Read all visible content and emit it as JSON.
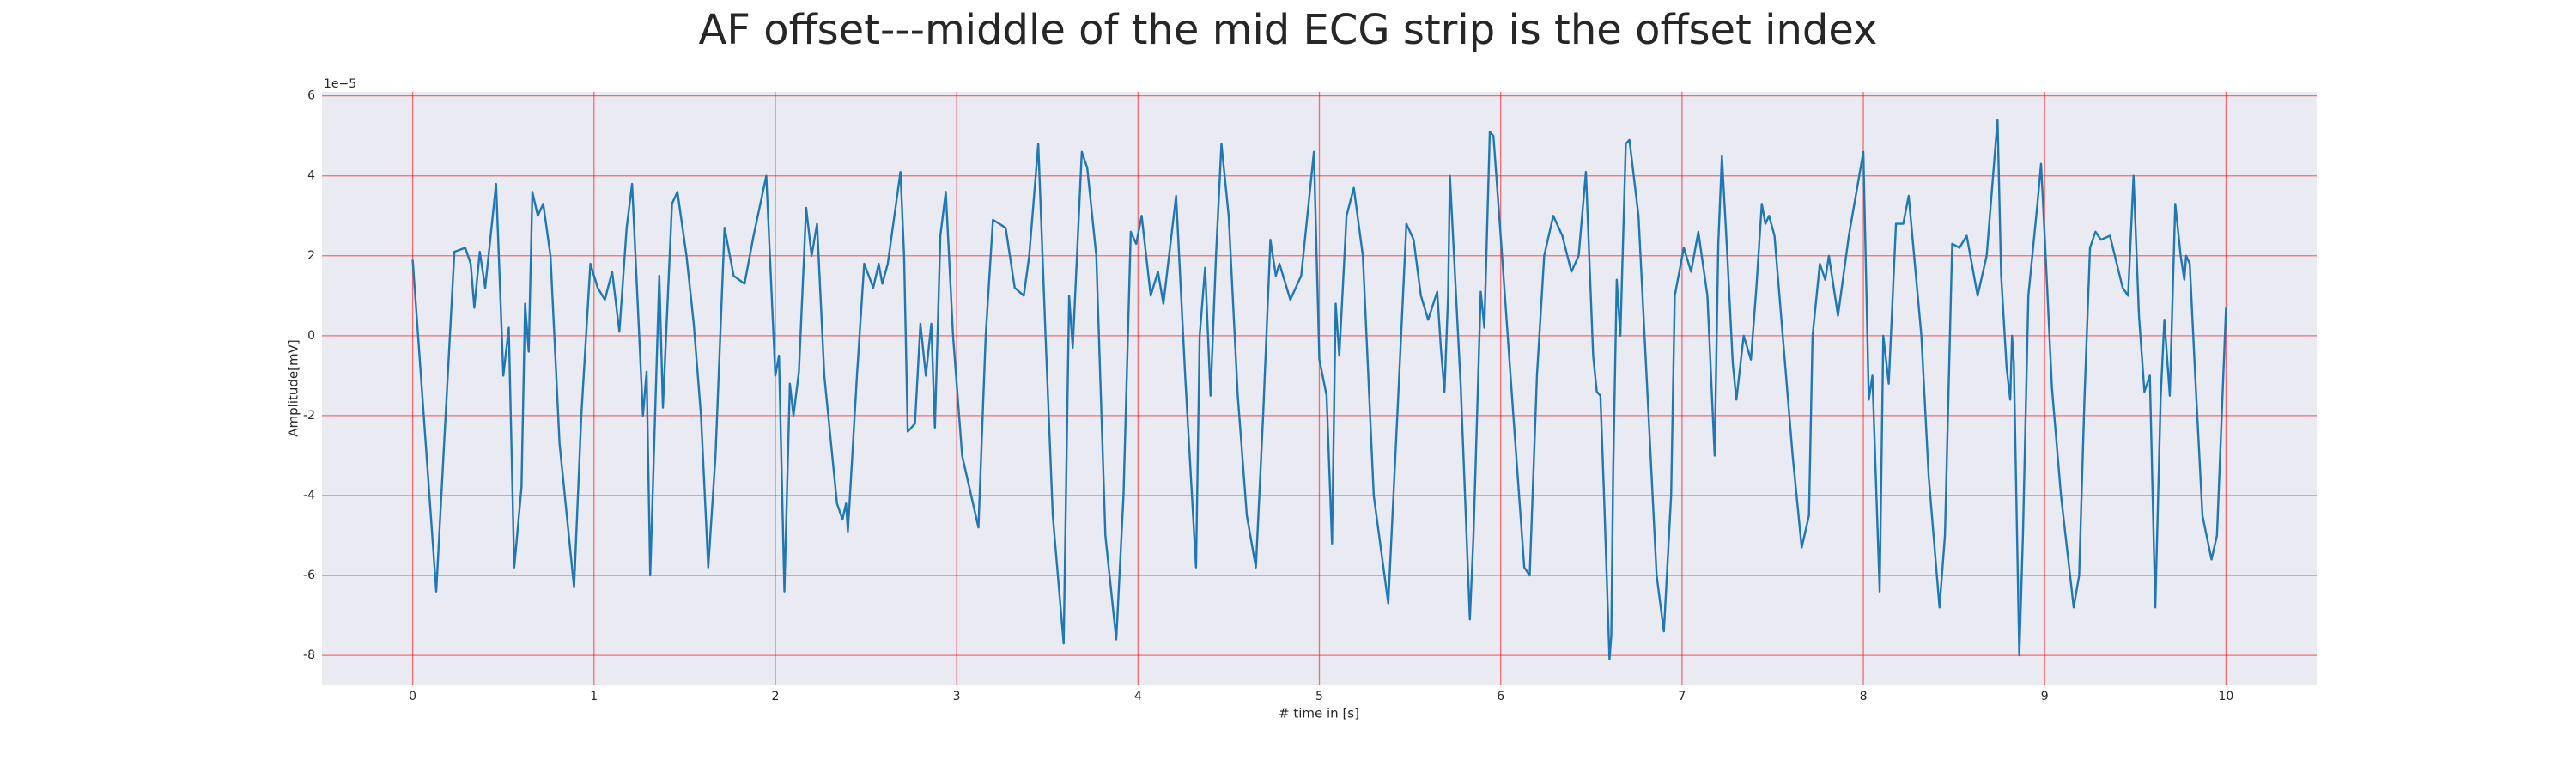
{
  "chart_data": {
    "type": "line",
    "title": "AF offset---middle of the mid ECG strip is the offset index",
    "x_label": "# time in [s]",
    "y_label": "Amplitude[mV]",
    "y_offset_label": "1e−5",
    "color": "#1f77b4",
    "grid": true,
    "grid_color": "#ff0000",
    "xlim": [
      -0.5,
      10.5
    ],
    "ylim": [
      -8.75,
      6.1
    ],
    "xticks": [
      0,
      1,
      2,
      3,
      4,
      5,
      6,
      7,
      8,
      9,
      10
    ],
    "yticks": [
      -8,
      -6,
      -4,
      -2,
      0,
      2,
      4,
      6
    ],
    "x": [
      0.0,
      0.13,
      0.23,
      0.29,
      0.32,
      0.34,
      0.37,
      0.4,
      0.46,
      0.5,
      0.53,
      0.56,
      0.6,
      0.62,
      0.64,
      0.66,
      0.69,
      0.72,
      0.76,
      0.81,
      0.89,
      0.93,
      0.98,
      1.02,
      1.06,
      1.1,
      1.14,
      1.18,
      1.21,
      1.27,
      1.29,
      1.31,
      1.36,
      1.38,
      1.43,
      1.46,
      1.51,
      1.55,
      1.59,
      1.63,
      1.67,
      1.72,
      1.77,
      1.83,
      1.88,
      1.95,
      1.99,
      2.0,
      2.02,
      2.05,
      2.08,
      2.1,
      2.13,
      2.17,
      2.2,
      2.23,
      2.27,
      2.34,
      2.37,
      2.39,
      2.4,
      2.45,
      2.49,
      2.54,
      2.57,
      2.59,
      2.62,
      2.69,
      2.71,
      2.73,
      2.77,
      2.8,
      2.83,
      2.86,
      2.88,
      2.91,
      2.94,
      2.98,
      3.03,
      3.12,
      3.16,
      3.2,
      3.27,
      3.32,
      3.37,
      3.4,
      3.45,
      3.49,
      3.53,
      3.59,
      3.62,
      3.64,
      3.69,
      3.72,
      3.77,
      3.82,
      3.88,
      3.92,
      3.96,
      3.99,
      4.02,
      4.07,
      4.11,
      4.14,
      4.21,
      4.26,
      4.32,
      4.34,
      4.37,
      4.4,
      4.43,
      4.46,
      4.5,
      4.55,
      4.6,
      4.65,
      4.69,
      4.73,
      4.76,
      4.78,
      4.84,
      4.9,
      4.97,
      5.0,
      5.04,
      5.07,
      5.09,
      5.11,
      5.15,
      5.19,
      5.24,
      5.3,
      5.38,
      5.43,
      5.48,
      5.52,
      5.56,
      5.6,
      5.65,
      5.67,
      5.69,
      5.71,
      5.72,
      5.78,
      5.83,
      5.85,
      5.86,
      5.89,
      5.91,
      5.94,
      5.96,
      6.0,
      6.07,
      6.13,
      6.16,
      6.2,
      6.24,
      6.29,
      6.34,
      6.39,
      6.43,
      6.47,
      6.51,
      6.53,
      6.55,
      6.57,
      6.6,
      6.61,
      6.62,
      6.64,
      6.66,
      6.69,
      6.71,
      6.76,
      6.81,
      6.86,
      6.9,
      6.94,
      6.96,
      7.01,
      7.05,
      7.09,
      7.14,
      7.18,
      7.2,
      7.22,
      7.25,
      7.28,
      7.3,
      7.34,
      7.38,
      7.41,
      7.44,
      7.46,
      7.48,
      7.51,
      7.53,
      7.61,
      7.66,
      7.7,
      7.72,
      7.76,
      7.79,
      7.81,
      7.86,
      7.92,
      8.0,
      8.03,
      8.05,
      8.09,
      8.11,
      8.14,
      8.18,
      8.22,
      8.25,
      8.29,
      8.32,
      8.36,
      8.42,
      8.45,
      8.49,
      8.53,
      8.57,
      8.63,
      8.68,
      8.74,
      8.76,
      8.79,
      8.81,
      8.82,
      8.83,
      8.86,
      8.88,
      8.91,
      8.96,
      8.98,
      9.0,
      9.04,
      9.09,
      9.16,
      9.19,
      9.22,
      9.25,
      9.28,
      9.31,
      9.36,
      9.43,
      9.46,
      9.49,
      9.52,
      9.55,
      9.58,
      9.61,
      9.64,
      9.66,
      9.69,
      9.72,
      9.75,
      9.77,
      9.78,
      9.8,
      9.83,
      9.87,
      9.92,
      9.95,
      10.0
    ],
    "values": [
      1.9,
      -6.4,
      2.1,
      2.2,
      1.8,
      0.7,
      2.1,
      1.2,
      3.8,
      -1.0,
      0.2,
      -5.8,
      -3.8,
      0.8,
      -0.4,
      3.6,
      3.0,
      3.3,
      2.0,
      -2.7,
      -6.3,
      -2.0,
      1.8,
      1.2,
      0.9,
      1.6,
      0.1,
      2.7,
      3.8,
      -2.0,
      -0.9,
      -6.0,
      1.5,
      -1.8,
      3.3,
      3.6,
      2.0,
      0.3,
      -2.0,
      -5.8,
      -3.0,
      2.7,
      1.5,
      1.3,
      2.5,
      4.0,
      0.0,
      -1.0,
      -0.5,
      -6.4,
      -1.2,
      -2.0,
      -0.9,
      3.2,
      2.0,
      2.8,
      -1.0,
      -4.2,
      -4.6,
      -4.2,
      -4.9,
      -1.0,
      1.8,
      1.2,
      1.8,
      1.3,
      1.8,
      4.1,
      2.0,
      -2.4,
      -2.2,
      0.3,
      -1.0,
      0.3,
      -2.3,
      2.5,
      3.6,
      0.0,
      -3.0,
      -4.8,
      0.0,
      2.9,
      2.7,
      1.2,
      1.0,
      2.0,
      4.8,
      0.0,
      -4.5,
      -7.7,
      1.0,
      -0.3,
      4.6,
      4.2,
      2.0,
      -5.0,
      -7.6,
      -4.0,
      2.6,
      2.3,
      3.0,
      1.0,
      1.6,
      0.8,
      3.5,
      -1.0,
      -5.8,
      0.0,
      1.7,
      -1.5,
      2.0,
      4.8,
      3.0,
      -1.5,
      -4.5,
      -5.8,
      -2.0,
      2.4,
      1.5,
      1.8,
      0.9,
      1.5,
      4.6,
      -0.6,
      -1.5,
      -5.2,
      0.8,
      -0.5,
      3.0,
      3.7,
      2.0,
      -4.0,
      -6.7,
      -2.0,
      2.8,
      2.4,
      1.0,
      0.4,
      1.1,
      -0.3,
      -1.4,
      1.0,
      4.0,
      -1.3,
      -7.1,
      -5.0,
      -3.5,
      1.1,
      0.2,
      5.1,
      5.0,
      2.5,
      -2.0,
      -5.8,
      -6.0,
      -1.0,
      2.0,
      3.0,
      2.5,
      1.6,
      2.0,
      4.1,
      -0.5,
      -1.4,
      -1.5,
      -4.0,
      -8.1,
      -7.5,
      -3.5,
      1.4,
      0.0,
      4.8,
      4.9,
      3.0,
      -1.5,
      -6.0,
      -7.4,
      -4.0,
      1.0,
      2.2,
      1.6,
      2.6,
      1.0,
      -3.0,
      2.3,
      4.5,
      2.0,
      -0.7,
      -1.6,
      0.0,
      -0.6,
      1.2,
      3.3,
      2.8,
      3.0,
      2.5,
      1.4,
      -3.0,
      -5.3,
      -4.5,
      0.0,
      1.8,
      1.4,
      2.0,
      0.5,
      2.5,
      4.6,
      -1.6,
      -1.0,
      -6.4,
      0.0,
      -1.2,
      2.8,
      2.8,
      3.5,
      1.5,
      0.0,
      -3.5,
      -6.8,
      -5.0,
      2.3,
      2.2,
      2.5,
      1.0,
      2.0,
      5.4,
      1.5,
      -0.8,
      -1.6,
      0.0,
      -0.7,
      -8.0,
      -5.0,
      1.0,
      3.3,
      4.3,
      2.5,
      -1.3,
      -4.0,
      -6.8,
      -6.0,
      -1.5,
      2.2,
      2.6,
      2.4,
      2.5,
      1.2,
      1.0,
      4.0,
      0.5,
      -1.4,
      -1.0,
      -6.8,
      -1.5,
      0.4,
      -1.5,
      3.3,
      2.0,
      1.4,
      2.0,
      1.8,
      -1.0,
      -4.5,
      -5.6,
      -5.0,
      0.7
    ]
  }
}
